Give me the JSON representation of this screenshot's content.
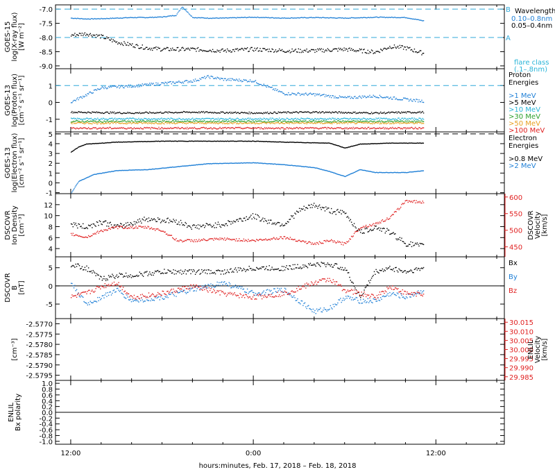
{
  "colors": {
    "black": "#000000",
    "blue": "#1e7fd6",
    "cyan": "#28b4d8",
    "green": "#2ca02c",
    "lime": "#9acd32",
    "orange": "#e8a020",
    "red": "#e02020",
    "dashed_blue": "#2fa8d8"
  },
  "x_axis": {
    "title": "hours:minutes, Feb. 17, 2018 – Feb. 18, 2018",
    "ticks": [
      "12:00",
      "0:00",
      "12:00"
    ]
  },
  "chart_data": [
    {
      "type": "scatter",
      "panel": "xray",
      "ylabel": [
        "GOES-15",
        "log(X-ray flux)",
        "[W m⁻²]"
      ],
      "yticks": [
        "-7.0",
        "-7.5",
        "-8.0",
        "-8.5",
        "-9.0"
      ],
      "ylim": [
        -9.1,
        -6.85
      ],
      "thresholds": [
        {
          "value": -7.0,
          "label": "B"
        },
        {
          "value": -8.0,
          "label": "A"
        }
      ],
      "legend": {
        "title": "Wavelength",
        "entries": [
          {
            "name": "0.10–0.8nm",
            "color": "blue"
          },
          {
            "name": "0.05–0.4nm",
            "color": "black"
          }
        ],
        "note": [
          "flare class",
          "(.1–.8nm)"
        ]
      },
      "series": [
        {
          "name": "0.10–0.8nm",
          "color": "blue",
          "x": [
            0.0,
            1.0,
            2.0,
            3.0,
            4.0,
            5.0,
            6.0,
            6.9,
            7.3,
            8.0,
            9.0,
            10.0,
            12.0,
            14.0,
            16.0,
            18.0,
            20.0,
            22.0,
            23.2
          ],
          "y": [
            -7.3,
            -7.33,
            -7.32,
            -7.3,
            -7.28,
            -7.28,
            -7.26,
            -7.2,
            -6.9,
            -7.28,
            -7.3,
            -7.3,
            -7.27,
            -7.3,
            -7.28,
            -7.3,
            -7.27,
            -7.28,
            -7.4
          ]
        },
        {
          "name": "0.05–0.4nm",
          "color": "black",
          "x": [
            0.0,
            1.0,
            2.0,
            3.0,
            4.0,
            5.0,
            6.0,
            8.0,
            10.0,
            12.0,
            14.0,
            16.0,
            18.0,
            20.0,
            21.0,
            22.0,
            23.2
          ],
          "y": [
            -7.9,
            -7.85,
            -7.95,
            -8.15,
            -8.25,
            -8.35,
            -8.4,
            -8.4,
            -8.45,
            -8.4,
            -8.45,
            -8.45,
            -8.4,
            -8.5,
            -8.3,
            -8.35,
            -8.55
          ]
        }
      ]
    },
    {
      "type": "scatter",
      "panel": "proton",
      "ylabel": [
        "GOES-13",
        "log(Proton flux)",
        "[cm⁻² s⁻¹ sr⁻¹]"
      ],
      "yticks": [
        "1",
        "0",
        "-1"
      ],
      "ylim": [
        -1.75,
        2.0
      ],
      "thresholds": [
        {
          "value": 1.0,
          "label": ""
        }
      ],
      "legend": {
        "title": [
          "Proton",
          "Energies"
        ],
        "entries": [
          {
            "name": ">1 MeV",
            "color": "blue"
          },
          {
            "name": ">5 MeV",
            "color": "black"
          },
          {
            "name": ">10 MeV",
            "color": "cyan"
          },
          {
            "name": ">30 MeV",
            "color": "green"
          },
          {
            "name": ">50 MeV",
            "color": "orange"
          },
          {
            "name": ">100 MeV",
            "color": "red"
          }
        ]
      },
      "series": [
        {
          "name": ">1 MeV",
          "color": "blue",
          "x": [
            0,
            2,
            4,
            6,
            8,
            9,
            10,
            12,
            14,
            16,
            18,
            20,
            22,
            23.2
          ],
          "y": [
            0.05,
            0.9,
            1.0,
            1.15,
            1.3,
            1.55,
            1.4,
            1.3,
            0.55,
            0.5,
            0.3,
            0.4,
            0.2,
            0.1
          ]
        },
        {
          "name": ">5 MeV",
          "color": "black",
          "x": [
            0,
            4,
            8,
            12,
            16,
            20,
            23.2
          ],
          "y": [
            -0.55,
            -0.6,
            -0.55,
            -0.6,
            -0.55,
            -0.6,
            -0.55
          ]
        },
        {
          "name": ">10 MeV",
          "color": "cyan",
          "x": [
            0,
            4,
            8,
            12,
            16,
            20,
            23.2
          ],
          "y": [
            -0.95,
            -0.95,
            -0.95,
            -0.95,
            -0.95,
            -0.95,
            -0.95
          ]
        },
        {
          "name": ">30 MeV",
          "color": "green",
          "x": [
            0,
            4,
            8,
            12,
            16,
            20,
            23.2
          ],
          "y": [
            -1.1,
            -1.1,
            -1.1,
            -1.1,
            -1.1,
            -1.1,
            -1.1
          ]
        },
        {
          "name": ">50 MeV",
          "color": "orange",
          "x": [
            0,
            4,
            8,
            12,
            16,
            20,
            23.2
          ],
          "y": [
            -1.2,
            -1.2,
            -1.2,
            -1.2,
            -1.2,
            -1.2,
            -1.2
          ]
        },
        {
          "name": ">100 MeV",
          "color": "red",
          "x": [
            0,
            4,
            8,
            12,
            16,
            20,
            23.2
          ],
          "y": [
            -1.5,
            -1.5,
            -1.5,
            -1.5,
            -1.5,
            -1.5,
            -1.5
          ]
        }
      ]
    },
    {
      "type": "line",
      "panel": "electron",
      "ylabel": [
        "GOES-13",
        "log(Electron flux)",
        "[cm⁻² s⁻¹ sr⁻¹]"
      ],
      "yticks": [
        "5",
        "4",
        "3",
        "2",
        "1",
        "0",
        "-1"
      ],
      "ylim": [
        -1.1,
        5.2
      ],
      "thresholds": [
        {
          "value": 5.0,
          "label": ""
        }
      ],
      "legend": {
        "title": [
          "Electron",
          "Energies"
        ],
        "entries": [
          {
            "name": ">0.8 MeV",
            "color": "black"
          },
          {
            "name": ">2 MeV",
            "color": "blue"
          }
        ]
      },
      "series": [
        {
          "name": ">0.8 MeV",
          "color": "black",
          "x": [
            0,
            0.5,
            1,
            3,
            6,
            9,
            12,
            14,
            17,
            18,
            19,
            21,
            23.2
          ],
          "y": [
            3.2,
            3.7,
            4.0,
            4.2,
            4.3,
            4.3,
            4.3,
            4.2,
            4.1,
            3.6,
            4.0,
            4.1,
            4.1
          ]
        },
        {
          "name": ">2 MeV",
          "color": "blue",
          "x": [
            0,
            0.5,
            1.5,
            3,
            5,
            7,
            9,
            12,
            14,
            16,
            17,
            18,
            19,
            20,
            22,
            23.2
          ],
          "y": [
            -1.0,
            0.2,
            0.9,
            1.3,
            1.4,
            1.7,
            2.0,
            2.1,
            1.9,
            1.6,
            1.2,
            0.7,
            1.4,
            1.1,
            1.1,
            1.3
          ]
        }
      ]
    },
    {
      "type": "scatter",
      "panel": "density",
      "ylabel": [
        "DSCOVR",
        "Ion Density",
        "[cm⁻³]"
      ],
      "yticks": [
        "12",
        "10",
        "8",
        "6",
        "4"
      ],
      "ylim": [
        2.5,
        14.0
      ],
      "right_axis": {
        "label": [
          "DSCOVR",
          "Velocity",
          "[km/s]"
        ],
        "ticks": [
          "600",
          "550",
          "500",
          "450"
        ],
        "ylim": [
          420,
          610
        ],
        "color": "red"
      },
      "series": [
        {
          "name": "Ion Density",
          "color": "black",
          "x": [
            0,
            1,
            2,
            3,
            5,
            7,
            8,
            10,
            12,
            13,
            14,
            15,
            16,
            17,
            18,
            19,
            20,
            21,
            22,
            23.2
          ],
          "y": [
            8.5,
            8.0,
            9.0,
            8.0,
            9.5,
            9.0,
            8.0,
            8.5,
            10.0,
            9.0,
            8.5,
            11.0,
            12.0,
            11.0,
            10.5,
            7.0,
            8.0,
            7.0,
            5.0,
            4.5
          ]
        },
        {
          "name": "Velocity",
          "color": "red",
          "axis": "right",
          "x": [
            0,
            1,
            2,
            3,
            5,
            6,
            7,
            8,
            10,
            12,
            14,
            16,
            17,
            18,
            19,
            20,
            21,
            22,
            23.2
          ],
          "y": [
            490,
            480,
            500,
            510,
            510,
            500,
            470,
            470,
            475,
            470,
            480,
            460,
            470,
            460,
            510,
            520,
            540,
            590,
            585
          ]
        }
      ]
    },
    {
      "type": "scatter",
      "panel": "bfield",
      "ylabel": [
        "DSCOVR",
        "B",
        "[nT]"
      ],
      "yticks": [
        "5",
        "0",
        "-5"
      ],
      "ylim": [
        -9.0,
        8.0
      ],
      "legend": {
        "entries": [
          {
            "name": "Bx",
            "color": "black"
          },
          {
            "name": "By",
            "color": "blue"
          },
          {
            "name": "Bz",
            "color": "red"
          }
        ]
      },
      "series": [
        {
          "name": "Bx",
          "color": "black",
          "x": [
            0,
            1,
            2,
            3,
            4,
            6,
            8,
            10,
            12,
            14,
            16,
            17,
            18,
            19,
            20,
            21,
            22,
            23.2
          ],
          "y": [
            6,
            5,
            2,
            3,
            3,
            4,
            4,
            4,
            5,
            5,
            6,
            6,
            5,
            -3,
            4,
            5,
            4,
            5
          ]
        },
        {
          "name": "By",
          "color": "blue",
          "x": [
            0,
            1,
            2,
            3,
            4,
            6,
            8,
            10,
            12,
            14,
            16,
            17,
            18,
            19,
            20,
            21,
            22,
            23.2
          ],
          "y": [
            1,
            -5,
            -3,
            -1,
            -4,
            -3,
            -1,
            1,
            -2,
            -1,
            -7,
            -6,
            -3,
            -4,
            -4,
            -2,
            -3,
            -1
          ]
        },
        {
          "name": "Bz",
          "color": "red",
          "x": [
            0,
            1,
            2,
            3,
            4,
            6,
            8,
            10,
            12,
            14,
            16,
            17,
            18,
            19,
            20,
            21,
            22,
            23.2
          ],
          "y": [
            -3,
            -2,
            0,
            1,
            -3,
            -2,
            0,
            -2,
            -3,
            -2,
            1,
            2,
            -1,
            -2,
            -3,
            0,
            -2,
            -2
          ]
        }
      ]
    },
    {
      "type": "scatter",
      "panel": "enlil_density",
      "ylabel": [
        "[cm⁻³]"
      ],
      "yticks": [
        "-2.5770",
        "-2.5775",
        "-2.5780",
        "-2.5785",
        "-2.5790",
        "-2.5795"
      ],
      "ylim": [
        -2.57975,
        -2.57675
      ],
      "right_axis": {
        "label": [
          "ENLIL",
          "Velocity",
          "[km/s]"
        ],
        "ticks": [
          "30.015",
          "30.010",
          "30.005",
          "30.000",
          "29.995",
          "29.990",
          "29.985"
        ],
        "ylim": [
          29.983,
          30.017
        ],
        "color": "red"
      },
      "series": []
    },
    {
      "type": "scatter",
      "panel": "enlil_polarity",
      "ylabel": [
        "ENLIL",
        "Bx polarity"
      ],
      "yticks": [
        "1.0",
        "0.8",
        "0.6",
        "0.4",
        "0.2",
        "0.0",
        "-0.2",
        "-0.4",
        "-0.6",
        "-0.8",
        "-1.0"
      ],
      "ylim": [
        -1.1,
        1.1
      ],
      "series": []
    }
  ]
}
